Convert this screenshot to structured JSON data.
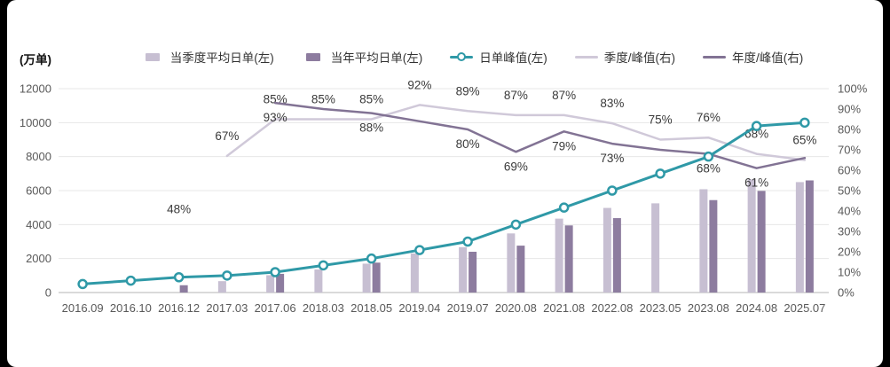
{
  "unit_label": "(万单)",
  "colors": {
    "quarter_bar": "#c7bfd2",
    "year_bar": "#8d7c9f",
    "peak_line": "#2f99a7",
    "peak_marker_fill": "#ffffff",
    "quarter_ratio_line": "#d0c9d9",
    "year_ratio_line": "#827394",
    "grid": "#e7e7e7",
    "baseline": "#b5b5b5",
    "axis_text": "#595959",
    "label_text": "#3a3a3a",
    "background": "#ffffff",
    "page_edge": "#000000"
  },
  "legend": {
    "items": [
      {
        "label": "当季度平均日单(左)",
        "type": "bar",
        "color_key": "quarter_bar"
      },
      {
        "label": "当年平均日单(左)",
        "type": "bar",
        "color_key": "year_bar"
      },
      {
        "label": "日单峰值(左)",
        "type": "line-marker",
        "color_key": "peak_line"
      },
      {
        "label": "季度/峰值(右)",
        "type": "line",
        "color_key": "quarter_ratio_line"
      },
      {
        "label": "年度/峰值(右)",
        "type": "line",
        "color_key": "year_ratio_line"
      }
    ]
  },
  "chart_data": {
    "type": "bar+line combo",
    "title": "",
    "unit": "(万单)",
    "categories": [
      "2016.09",
      "2016.10",
      "2016.12",
      "2017.03",
      "2017.06",
      "2018.03",
      "2018.05",
      "2019.04",
      "2019.07",
      "2020.08",
      "2021.08",
      "2022.08",
      "2023.05",
      "2023.08",
      "2024.08",
      "2025.07"
    ],
    "left_axis": {
      "min": 0,
      "max": 12000,
      "step": 2000,
      "tick_labels": [
        "0",
        "2000",
        "4000",
        "6000",
        "8000",
        "10000",
        "12000"
      ]
    },
    "right_axis": {
      "min": 0,
      "max": 100,
      "step": 10,
      "tick_labels": [
        "0%",
        "10%",
        "20%",
        "30%",
        "40%",
        "50%",
        "60%",
        "70%",
        "80%",
        "90%",
        "100%"
      ]
    },
    "grid": true,
    "legend_position": "top",
    "bar_series": [
      {
        "name": "当季度平均日单(左)",
        "axis": "left",
        "color_key": "quarter_bar",
        "values": [
          null,
          null,
          null,
          670,
          1020,
          1360,
          1700,
          2300,
          2670,
          3480,
          4350,
          4980,
          5250,
          6080,
          6660,
          6500
        ]
      },
      {
        "name": "当年平均日单(左)",
        "axis": "left",
        "color_key": "year_bar",
        "values": [
          null,
          null,
          430,
          null,
          1100,
          null,
          1760,
          null,
          2400,
          2760,
          3950,
          4380,
          null,
          5440,
          5980,
          6600
        ]
      }
    ],
    "line_series": [
      {
        "name": "季度/峰值(右)",
        "axis": "right",
        "color_key": "quarter_ratio_line",
        "marker": false,
        "width": 2.5,
        "label_position": "above",
        "values": [
          null,
          null,
          null,
          67,
          85,
          85,
          85,
          92,
          89,
          87,
          87,
          83,
          75,
          76,
          68,
          65
        ],
        "labels": [
          null,
          null,
          null,
          "67%",
          "85%",
          "85%",
          "85%",
          "92%",
          "89%",
          "87%",
          "87%",
          "83%",
          "75%",
          "76%",
          "68%",
          "65%"
        ]
      },
      {
        "name": "年度/峰值(右)",
        "axis": "right",
        "color_key": "year_ratio_line",
        "marker": false,
        "width": 2.5,
        "label_position": "below",
        "values": [
          null,
          null,
          48,
          null,
          93,
          90,
          88,
          84,
          80,
          69,
          79,
          73,
          70,
          68,
          61,
          66
        ],
        "labels": [
          null,
          null,
          "48%",
          null,
          "93%",
          null,
          "88%",
          null,
          "80%",
          "69%",
          "79%",
          "73%",
          null,
          "68%",
          "61%",
          null
        ]
      },
      {
        "name": "日单峰值(左)",
        "axis": "left",
        "color_key": "peak_line",
        "marker": true,
        "width": 3,
        "label_position": "above",
        "values": [
          500,
          700,
          900,
          1000,
          1200,
          1600,
          2000,
          2500,
          3000,
          4000,
          5000,
          6000,
          7000,
          8000,
          9800,
          10000
        ],
        "labels": []
      }
    ]
  }
}
